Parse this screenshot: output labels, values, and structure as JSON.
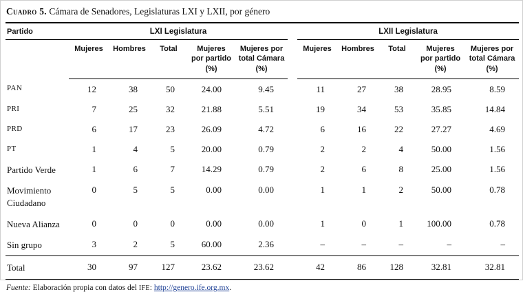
{
  "title": {
    "label": "Cuadro 5.",
    "text": " Cámara de Senadores, Legislaturas LXI y LXII, por género"
  },
  "colors": {
    "link": "#1b3e94",
    "rule": "#000000",
    "background": "#ffffff"
  },
  "chart_data": {
    "type": "table",
    "title": "Cámara de Senadores, Legislaturas LXI y LXII, por género",
    "row_header": "Partido",
    "groups": [
      "LXI Legislatura",
      "LXII Legislatura"
    ],
    "measures": [
      "Mujeres",
      "Hombres",
      "Total",
      "Mujeres\npor partido\n(%)",
      "Mujeres por\ntotal Cámara\n(%)"
    ],
    "rows": [
      {
        "partido": "PAN",
        "abbr": true,
        "lxi": [
          "12",
          "38",
          "50",
          "24.00",
          "9.45"
        ],
        "lxii": [
          "11",
          "27",
          "38",
          "28.95",
          "8.59"
        ]
      },
      {
        "partido": "PRI",
        "abbr": true,
        "lxi": [
          "7",
          "25",
          "32",
          "21.88",
          "5.51"
        ],
        "lxii": [
          "19",
          "34",
          "53",
          "35.85",
          "14.84"
        ]
      },
      {
        "partido": "PRD",
        "abbr": true,
        "lxi": [
          "6",
          "17",
          "23",
          "26.09",
          "4.72"
        ],
        "lxii": [
          "6",
          "16",
          "22",
          "27.27",
          "4.69"
        ]
      },
      {
        "partido": "PT",
        "abbr": true,
        "lxi": [
          "1",
          "4",
          "5",
          "20.00",
          "0.79"
        ],
        "lxii": [
          "2",
          "2",
          "4",
          "50.00",
          "1.56"
        ]
      },
      {
        "partido": "Partido Verde",
        "abbr": false,
        "lxi": [
          "1",
          "6",
          "7",
          "14.29",
          "0.79"
        ],
        "lxii": [
          "2",
          "6",
          "8",
          "25.00",
          "1.56"
        ]
      },
      {
        "partido": "Movimiento Ciudadano",
        "abbr": false,
        "lxi": [
          "0",
          "5",
          "5",
          "0.00",
          "0.00"
        ],
        "lxii": [
          "1",
          "1",
          "2",
          "50.00",
          "0.78"
        ]
      },
      {
        "partido": "Nueva Alianza",
        "abbr": false,
        "lxi": [
          "0",
          "0",
          "0",
          "0.00",
          "0.00"
        ],
        "lxii": [
          "1",
          "0",
          "1",
          "100.00",
          "0.78"
        ]
      },
      {
        "partido": "Sin grupo",
        "abbr": false,
        "lxi": [
          "3",
          "2",
          "5",
          "60.00",
          "2.36"
        ],
        "lxii": [
          "–",
          "–",
          "–",
          "–",
          "–"
        ]
      },
      {
        "partido": "Total",
        "abbr": false,
        "total": true,
        "lxi": [
          "30",
          "97",
          "127",
          "23.62",
          "23.62"
        ],
        "lxii": [
          "42",
          "86",
          "128",
          "32.81",
          "32.81"
        ]
      }
    ]
  },
  "footer": {
    "source_label": "Fuente:",
    "text_before_org": " Elaboración propia con datos del ",
    "org": "IFE",
    "separator": ": ",
    "link": "http://genero.ife.org.mx",
    "suffix": "."
  }
}
